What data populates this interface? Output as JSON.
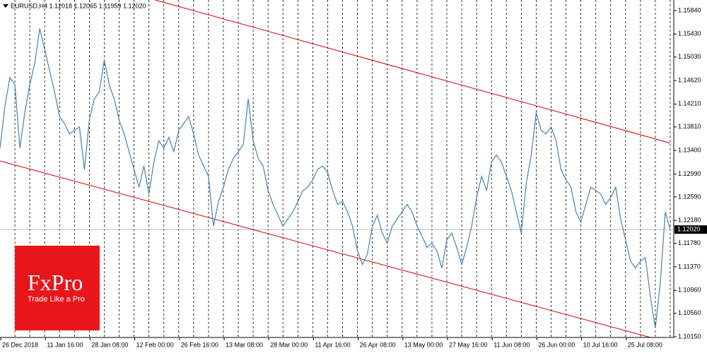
{
  "chart_data": {
    "type": "line",
    "title": "EURUSD,H4  1.12018 1.12065 1.11959 1.12020",
    "categories": [
      "26 Dec 2018",
      null,
      null,
      null,
      null,
      null,
      null,
      null,
      null,
      "11 Jan 16:00",
      null,
      null,
      null,
      null,
      null,
      null,
      null,
      null,
      "28 Jan 08:00",
      null,
      null,
      null,
      null,
      null,
      null,
      null,
      null,
      "12 Feb 00:00",
      null,
      null,
      null,
      null,
      null,
      null,
      null,
      null,
      "26 Feb 16:00",
      null,
      null,
      null,
      null,
      null,
      null,
      null,
      null,
      "13 Mar 08:00",
      null,
      null,
      null,
      null,
      null,
      null,
      null,
      null,
      "28 Mar 00:00",
      null,
      null,
      null,
      null,
      null,
      null,
      null,
      null,
      "11 Apr 16:00",
      null,
      null,
      null,
      null,
      null,
      null,
      null,
      null,
      "26 Apr 08:00",
      null,
      null,
      null,
      null,
      null,
      null,
      null,
      null,
      "13 May 00:00",
      null,
      null,
      null,
      null,
      null,
      null,
      null,
      null,
      "27 May 16:00",
      null,
      null,
      null,
      null,
      null,
      null,
      null,
      null,
      "11 Jun 08:00",
      null,
      null,
      null,
      null,
      null,
      null,
      null,
      null,
      "26 Jun 00:00",
      null,
      null,
      null,
      null,
      null,
      null,
      null,
      null,
      "10 Jul 16:00",
      null,
      null,
      null,
      null,
      null,
      null,
      null,
      null,
      "25 Jul 08:00",
      null,
      null,
      null,
      null,
      null,
      null,
      null,
      null,
      null
    ],
    "series": [
      {
        "name": "EURUSD",
        "color": "#4682b4",
        "values": [
          1.1344,
          1.1418,
          1.1467,
          1.1455,
          1.1344,
          1.1406,
          1.1455,
          1.1492,
          1.1553,
          1.1516,
          1.1479,
          1.1442,
          1.1399,
          1.1387,
          1.1369,
          1.1375,
          1.1381,
          1.1307,
          1.1393,
          1.143,
          1.1442,
          1.1498,
          1.1455,
          1.143,
          1.1393,
          1.1369,
          1.1338,
          1.1307,
          1.1276,
          1.1313,
          1.1264,
          1.132,
          1.1357,
          1.1344,
          1.1363,
          1.1338,
          1.1375,
          1.1387,
          1.1399,
          1.1369,
          1.1332,
          1.1313,
          1.1295,
          1.1208,
          1.1251,
          1.1276,
          1.1307,
          1.1326,
          1.1338,
          1.135,
          1.143,
          1.1357,
          1.1326,
          1.1313,
          1.127,
          1.1246,
          1.1227,
          1.1208,
          1.1221,
          1.1233,
          1.1251,
          1.127,
          1.1276,
          1.1289,
          1.1307,
          1.1313,
          1.1301,
          1.127,
          1.1246,
          1.1251,
          1.1233,
          1.1208,
          1.1165,
          1.1141,
          1.1159,
          1.1208,
          1.1227,
          1.1196,
          1.1178,
          1.1208,
          1.1221,
          1.1233,
          1.1246,
          1.1233,
          1.1208,
          1.119,
          1.1171,
          1.1178,
          1.1165,
          1.1135,
          1.1184,
          1.1196,
          1.1171,
          1.1141,
          1.1171,
          1.1208,
          1.1258,
          1.1295,
          1.127,
          1.132,
          1.1332,
          1.132,
          1.1295,
          1.127,
          1.1233,
          1.1196,
          1.1283,
          1.1332,
          1.1406,
          1.1375,
          1.1369,
          1.1381,
          1.1357,
          1.1307,
          1.1289,
          1.1276,
          1.1233,
          1.1215,
          1.1246,
          1.1276,
          1.127,
          1.1264,
          1.1246,
          1.1258,
          1.1276,
          1.1221,
          1.1184,
          1.1147,
          1.1135,
          1.1147,
          1.1153,
          1.1085,
          1.103,
          1.111,
          1.1233,
          1.1202
        ]
      }
    ],
    "ylim": [
      1.10138,
      1.16025
    ],
    "yticks": [
      {
        "value": 1.1584,
        "label": "1.15840"
      },
      {
        "value": 1.1543,
        "label": "1.15430"
      },
      {
        "value": 1.1503,
        "label": "1.15030"
      },
      {
        "value": 1.1462,
        "label": "1.14620"
      },
      {
        "value": 1.1421,
        "label": "1.14210"
      },
      {
        "value": 1.1381,
        "label": "1.13810"
      },
      {
        "value": 1.134,
        "label": "1.13400"
      },
      {
        "value": 1.1299,
        "label": "1.12990"
      },
      {
        "value": 1.1259,
        "label": "1.12590"
      },
      {
        "value": 1.1218,
        "label": "1.12180"
      },
      {
        "value": 1.1178,
        "label": "1.11780"
      },
      {
        "value": 1.1137,
        "label": "1.11370"
      },
      {
        "value": 1.1096,
        "label": "1.10960"
      },
      {
        "value": 1.1056,
        "label": "1.10560"
      },
      {
        "value": 1.1015,
        "label": "1.10150"
      }
    ],
    "current_price": {
      "value": 1.1202,
      "label": "1.12020"
    },
    "channel": {
      "color": "#cc0000",
      "upper": [
        1.16778,
        1.1353
      ],
      "lower": [
        1.13217,
        1.10045
      ]
    },
    "grid": true
  },
  "logo": {
    "brand": "FxPro",
    "tagline": "Trade Like a Pro"
  }
}
